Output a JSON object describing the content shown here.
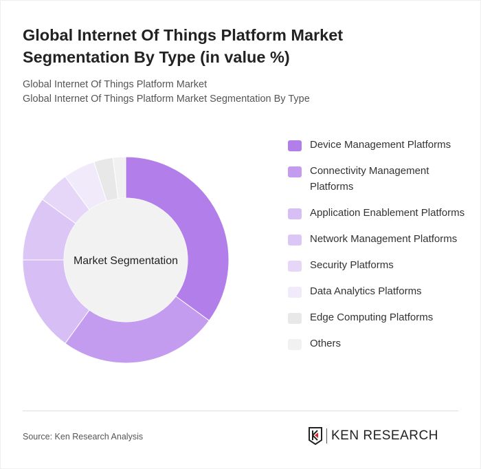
{
  "title": "Global Internet Of Things Platform Market Segmentation By Type (in value %)",
  "subtitle1": "Global Internet Of Things Platform Market",
  "subtitle2": "Global Internet Of Things Platform Market Segmentation By Type",
  "source": "Source: Ken Research Analysis",
  "logo_text": "KEN RESEARCH",
  "chart_data": {
    "type": "pie",
    "center_label": "Market Segmentation",
    "categories": [
      "Device Management Platforms",
      "Connectivity Management Platforms",
      "Application Enablement Platforms",
      "Network Management Platforms",
      "Security Platforms",
      "Data Analytics Platforms",
      "Edge Computing Platforms",
      "Others"
    ],
    "values": [
      35,
      25,
      15,
      10,
      5,
      5,
      3,
      2
    ],
    "colors": [
      "#b27fea",
      "#c49cef",
      "#d7bff5",
      "#dcc6f6",
      "#e6d6f8",
      "#f1eafb",
      "#e8e8e8",
      "#f1f1f1"
    ],
    "legend": "right"
  }
}
